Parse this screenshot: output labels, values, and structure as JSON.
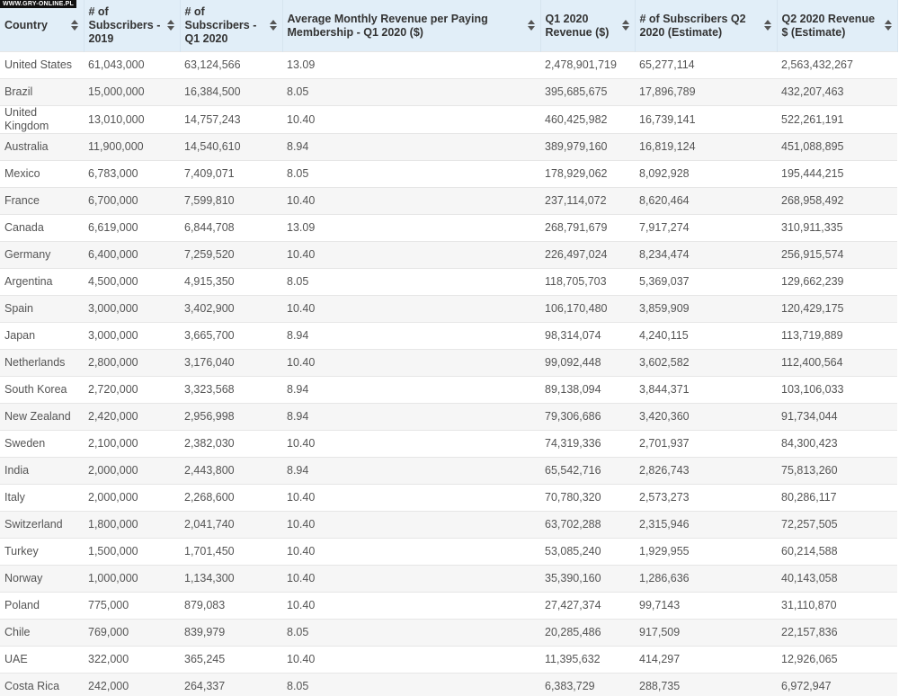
{
  "watermark": "WWW.GRY-ONLINE.PL",
  "table": {
    "headers": [
      "Country",
      "# of Subscribers - 2019",
      "# of Subscribers - Q1 2020",
      "Average Monthly Revenue per Paying Membership - Q1 2020 ($)",
      "Q1 2020 Revenue ($)",
      "# of Subscribers Q2 2020 (Estimate)",
      "Q2 2020 Revenue $ (Estimate)"
    ],
    "rows": [
      [
        "United States",
        "61,043,000",
        "63,124,566",
        "13.09",
        "2,478,901,719",
        "65,277,114",
        "2,563,432,267"
      ],
      [
        "Brazil",
        "15,000,000",
        "16,384,500",
        "8.05",
        "395,685,675",
        "17,896,789",
        "432,207,463"
      ],
      [
        "United Kingdom",
        "13,010,000",
        "14,757,243",
        "10.40",
        "460,425,982",
        "16,739,141",
        "522,261,191"
      ],
      [
        "Australia",
        "11,900,000",
        "14,540,610",
        "8.94",
        "389,979,160",
        "16,819,124",
        "451,088,895"
      ],
      [
        "Mexico",
        "6,783,000",
        "7,409,071",
        "8.05",
        "178,929,062",
        "8,092,928",
        "195,444,215"
      ],
      [
        "France",
        "6,700,000",
        "7,599,810",
        "10.40",
        "237,114,072",
        "8,620,464",
        "268,958,492"
      ],
      [
        "Canada",
        "6,619,000",
        "6,844,708",
        "13.09",
        "268,791,679",
        "7,917,274",
        "310,911,335"
      ],
      [
        "Germany",
        "6,400,000",
        "7,259,520",
        "10.40",
        "226,497,024",
        "8,234,474",
        "256,915,574"
      ],
      [
        "Argentina",
        "4,500,000",
        "4,915,350",
        "8.05",
        "118,705,703",
        "5,369,037",
        "129,662,239"
      ],
      [
        "Spain",
        "3,000,000",
        "3,402,900",
        "10.40",
        "106,170,480",
        "3,859,909",
        "120,429,175"
      ],
      [
        "Japan",
        "3,000,000",
        "3,665,700",
        "8.94",
        "98,314,074",
        "4,240,115",
        "113,719,889"
      ],
      [
        "Netherlands",
        "2,800,000",
        "3,176,040",
        "10.40",
        "99,092,448",
        "3,602,582",
        "112,400,564"
      ],
      [
        "South Korea",
        "2,720,000",
        "3,323,568",
        "8.94",
        "89,138,094",
        "3,844,371",
        "103,106,033"
      ],
      [
        "New Zealand",
        "2,420,000",
        "2,956,998",
        "8.94",
        "79,306,686",
        "3,420,360",
        "91,734,044"
      ],
      [
        "Sweden",
        "2,100,000",
        "2,382,030",
        "10.40",
        "74,319,336",
        "2,701,937",
        "84,300,423"
      ],
      [
        "India",
        "2,000,000",
        "2,443,800",
        "8.94",
        "65,542,716",
        "2,826,743",
        "75,813,260"
      ],
      [
        "Italy",
        "2,000,000",
        "2,268,600",
        "10.40",
        "70,780,320",
        "2,573,273",
        "80,286,117"
      ],
      [
        "Switzerland",
        "1,800,000",
        "2,041,740",
        "10.40",
        "63,702,288",
        "2,315,946",
        "72,257,505"
      ],
      [
        "Turkey",
        "1,500,000",
        "1,701,450",
        "10.40",
        "53,085,240",
        "1,929,955",
        "60,214,588"
      ],
      [
        "Norway",
        "1,000,000",
        "1,134,300",
        "10.40",
        "35,390,160",
        "1,286,636",
        "40,143,058"
      ],
      [
        "Poland",
        "775,000",
        "879,083",
        "10.40",
        "27,427,374",
        "99,7143",
        "31,110,870"
      ],
      [
        "Chile",
        "769,000",
        "839,979",
        "8.05",
        "20,285,486",
        "917,509",
        "22,157,836"
      ],
      [
        "UAE",
        "322,000",
        "365,245",
        "10.40",
        "11,395,632",
        "414,297",
        "12,926,065"
      ],
      [
        "Costa Rica",
        "242,000",
        "264,337",
        "8.05",
        "6,383,729",
        "288,735",
        "6,972,947"
      ]
    ]
  }
}
